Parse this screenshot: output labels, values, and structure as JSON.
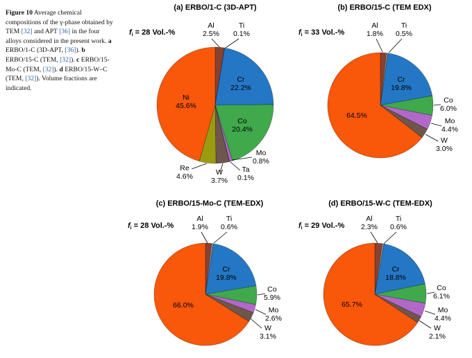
{
  "caption": {
    "segments": [
      {
        "t": "Figure 10",
        "s": "bold"
      },
      {
        "t": "  Average chemical compositions of the γ-phase obtained by TEM ",
        "s": "plain"
      },
      {
        "t": "[32]",
        "s": "link"
      },
      {
        "t": " and APT ",
        "s": "plain"
      },
      {
        "t": "[36]",
        "s": "link"
      },
      {
        "t": " in the four alloys considered in the present work. ",
        "s": "plain"
      },
      {
        "t": "a",
        "s": "bold"
      },
      {
        "t": " ERBO/1-C (3D-APT, ",
        "s": "plain"
      },
      {
        "t": "[36]",
        "s": "link"
      },
      {
        "t": "). ",
        "s": "plain"
      },
      {
        "t": "b",
        "s": "bold"
      },
      {
        "t": " ERBO/15-C (TEM, ",
        "s": "plain"
      },
      {
        "t": "[32]",
        "s": "link"
      },
      {
        "t": "). ",
        "s": "plain"
      },
      {
        "t": "c",
        "s": "bold"
      },
      {
        "t": " ERBO/15-Mo-C (TEM, ",
        "s": "plain"
      },
      {
        "t": "[32]",
        "s": "link"
      },
      {
        "t": "). ",
        "s": "plain"
      },
      {
        "t": "d",
        "s": "bold"
      },
      {
        "t": " ERBO/15-W–C (TEM, ",
        "s": "plain"
      },
      {
        "t": "[32]",
        "s": "link"
      },
      {
        "t": "). Volume fractions are indicated.",
        "s": "plain"
      }
    ]
  },
  "chart_data": [
    {
      "id": "a",
      "type": "pie",
      "title": "(a) ERBO/1-C (3D-APT)",
      "fi_symbol": "f",
      "fi_subscript": "i",
      "fi_text": "= 28 Vol.-%",
      "slices": [
        {
          "label": "Al",
          "value": 2.5,
          "color": "#8A4130"
        },
        {
          "label": "Ti",
          "value": 0.1,
          "color": "#8A8A8A"
        },
        {
          "label": "Cr",
          "value": 22.2,
          "color": "#2477C4"
        },
        {
          "label": "Co",
          "value": 20.4,
          "color": "#3FA94C"
        },
        {
          "label": "Mo",
          "value": 0.8,
          "color": "#B168C8"
        },
        {
          "label": "Ta",
          "value": 0.1,
          "color": "#E377C2"
        },
        {
          "label": "W",
          "value": 3.7,
          "color": "#6F564C"
        },
        {
          "label": "Re",
          "value": 4.6,
          "color": "#9A9B10"
        },
        {
          "label": "Ni",
          "value": 45.6,
          "color": "#F9570A"
        }
      ]
    },
    {
      "id": "b",
      "type": "pie",
      "title": "(b) ERBO/15-C (TEM EDX)",
      "fi_symbol": "f",
      "fi_subscript": "i",
      "fi_text": "= 33 Vol.-%",
      "slices": [
        {
          "label": "Al",
          "value": 1.8,
          "color": "#8A4130"
        },
        {
          "label": "Ti",
          "value": 0.5,
          "color": "#8A8A8A"
        },
        {
          "label": "Cr",
          "value": 19.8,
          "color": "#2477C4"
        },
        {
          "label": "Co",
          "value": 6.0,
          "color": "#3FA94C"
        },
        {
          "label": "Mo",
          "value": 4.4,
          "color": "#B168C8"
        },
        {
          "label": "W",
          "value": 3.0,
          "color": "#6F564C"
        },
        {
          "label": "Ni",
          "value": 64.5,
          "color": "#F9570A"
        }
      ]
    },
    {
      "id": "c",
      "type": "pie",
      "title": "(c) ERBO/15-Mo-C (TEM-EDX)",
      "fi_symbol": "f",
      "fi_subscript": "i",
      "fi_text": "= 28 Vol.-%",
      "slices": [
        {
          "label": "Al",
          "value": 1.9,
          "color": "#8A4130"
        },
        {
          "label": "Ti",
          "value": 0.6,
          "color": "#8A8A8A"
        },
        {
          "label": "Cr",
          "value": 19.8,
          "color": "#2477C4"
        },
        {
          "label": "Co",
          "value": 5.9,
          "color": "#3FA94C"
        },
        {
          "label": "Mo",
          "value": 2.6,
          "color": "#B168C8"
        },
        {
          "label": "W",
          "value": 3.1,
          "color": "#6F564C"
        },
        {
          "label": "Ni",
          "value": 66.0,
          "color": "#F9570A"
        }
      ]
    },
    {
      "id": "d",
      "type": "pie",
      "title": "(d) ERBO/15-W-C (TEM-EDX)",
      "fi_symbol": "f",
      "fi_subscript": "i",
      "fi_text": "= 29 Vol.-%",
      "slices": [
        {
          "label": "Al",
          "value": 2.3,
          "color": "#8A4130"
        },
        {
          "label": "Ti",
          "value": 0.6,
          "color": "#8A8A8A"
        },
        {
          "label": "Cr",
          "value": 18.8,
          "color": "#2477C4"
        },
        {
          "label": "Co",
          "value": 6.1,
          "color": "#3FA94C"
        },
        {
          "label": "Mo",
          "value": 4.4,
          "color": "#B168C8"
        },
        {
          "label": "W",
          "value": 2.1,
          "color": "#6F564C"
        },
        {
          "label": "Ni",
          "value": 65.7,
          "color": "#F9570A"
        }
      ]
    }
  ]
}
